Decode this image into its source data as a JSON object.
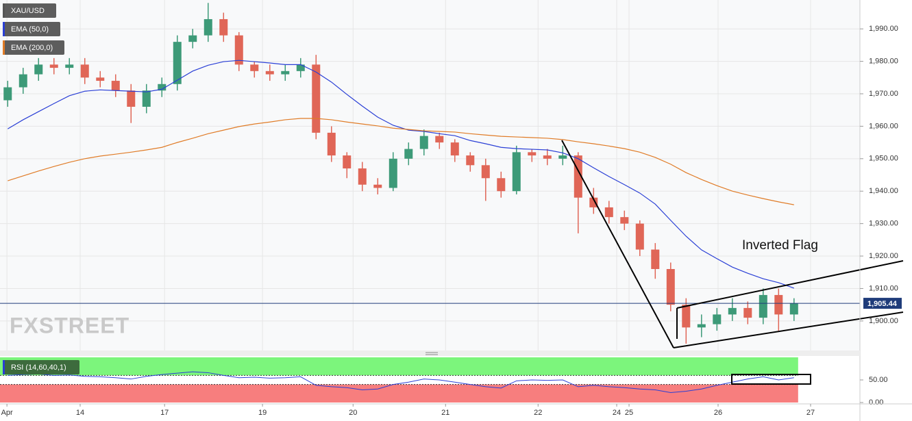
{
  "chart_data": [
    {
      "type": "candlestick",
      "watermark": "FXSTREET",
      "annotation": "Inverted Flag",
      "x": [
        2,
        6,
        10,
        14,
        18,
        22,
        26,
        30,
        34,
        38,
        42,
        46,
        50,
        54,
        58,
        62,
        66,
        70,
        74,
        78,
        82,
        86,
        90,
        94,
        98,
        102,
        106,
        110,
        114,
        118,
        122,
        126,
        130,
        134,
        138,
        142,
        146,
        150,
        154,
        158,
        162,
        166,
        170,
        174,
        178,
        182,
        186,
        190,
        194,
        198,
        202,
        206
      ],
      "xlim": [
        0,
        223.1
      ],
      "ylim": [
        1890.9,
        1998.9
      ],
      "yticks": [
        {
          "value": 1900,
          "label": "1,900.00"
        },
        {
          "value": 1910,
          "label": "1,910.00"
        },
        {
          "value": 1920,
          "label": "1,920.00"
        },
        {
          "value": 1930,
          "label": "1,930.00"
        },
        {
          "value": 1940,
          "label": "1,940.00"
        },
        {
          "value": 1950,
          "label": "1,950.00"
        },
        {
          "value": 1960,
          "label": "1,960.00"
        },
        {
          "value": 1970,
          "label": "1,970.00"
        },
        {
          "value": 1980,
          "label": "1,980.00"
        },
        {
          "value": 1990,
          "label": "1,990.00"
        }
      ],
      "grid": true,
      "price_line": {
        "value": 1905.44,
        "label": "1,905.44",
        "color": "#1f3c7a"
      },
      "candles": {
        "name": "XAU/USD",
        "color": "#555555",
        "up_color": "#3d9a78",
        "down_color": "#e06657",
        "open": [
          1968,
          1972,
          1976,
          1979,
          1978,
          1979,
          1975,
          1974,
          1971,
          1966,
          1971,
          1973,
          1986,
          1988,
          1993,
          1988,
          1979,
          1977,
          1976,
          1977,
          1979,
          1958,
          1951,
          1947,
          1942,
          1941,
          1950,
          1953,
          1957,
          1955,
          1951,
          1948,
          1944,
          1940,
          1952,
          1951,
          1950,
          1951,
          1938,
          1935,
          1932,
          1930,
          1922,
          1916,
          1905,
          1898,
          1899,
          1902,
          1904,
          1901,
          1908,
          1902
        ],
        "high": [
          1974,
          1978,
          1981,
          1981,
          1981,
          1981,
          1977,
          1976,
          1973,
          1973,
          1975,
          1988,
          1990,
          1998,
          1995,
          1989,
          1980,
          1979,
          1979,
          1981,
          1982,
          1960,
          1952,
          1949,
          1944,
          1952,
          1955,
          1959,
          1958,
          1956,
          1952,
          1950,
          1946,
          1954,
          1953,
          1953,
          1954,
          1952,
          1941,
          1937,
          1934,
          1931,
          1924,
          1918,
          1907,
          1902,
          1904,
          1907,
          1906,
          1910,
          1910,
          1907
        ],
        "low": [
          1966,
          1970,
          1974,
          1976,
          1976,
          1973,
          1972,
          1969,
          1961,
          1964,
          1969,
          1971,
          1984,
          1986,
          1986,
          1977,
          1975,
          1974,
          1974,
          1975,
          1956,
          1949,
          1944,
          1940,
          1939,
          1940,
          1948,
          1951,
          1953,
          1949,
          1946,
          1937,
          1938,
          1939,
          1949,
          1948,
          1948,
          1927,
          1933,
          1930,
          1928,
          1920,
          1913,
          1903,
          1893,
          1895,
          1897,
          1900,
          1899,
          1899,
          1897,
          1900
        ],
        "close": [
          1972,
          1976,
          1979,
          1978,
          1979,
          1975,
          1974,
          1971,
          1966,
          1971,
          1973,
          1986,
          1988,
          1993,
          1988,
          1979,
          1977,
          1976,
          1977,
          1979,
          1958,
          1951,
          1947,
          1942,
          1941,
          1950,
          1953,
          1957,
          1955,
          1951,
          1948,
          1944,
          1940,
          1952,
          1951,
          1950,
          1951,
          1938,
          1935,
          1932,
          1930,
          1922,
          1916,
          1905,
          1898,
          1899,
          1902,
          1904,
          1901,
          1908,
          1902,
          1905.44
        ]
      },
      "series": [
        {
          "name": "EMA (50,0)",
          "color": "#2a3fd6",
          "values": [
            1959.2,
            1962,
            1964.5,
            1967,
            1969.4,
            1970.8,
            1971.2,
            1971,
            1970.8,
            1970.6,
            1971.4,
            1974.2,
            1977,
            1978.8,
            1979.9,
            1980.3,
            1979.9,
            1979.5,
            1979,
            1979,
            1976.7,
            1973.6,
            1969.8,
            1966.2,
            1962.8,
            1960.3,
            1958.8,
            1958.4,
            1957.7,
            1957.1,
            1955.6,
            1954.6,
            1953.5,
            1953.1,
            1952.9,
            1952.7,
            1951.8,
            1950,
            1947.2,
            1944.5,
            1942,
            1939.4,
            1936,
            1931,
            1926.1,
            1921.9,
            1919.2,
            1916.6,
            1914.7,
            1913,
            1911.8,
            1910.1
          ]
        },
        {
          "name": "EMA (200,0)",
          "color": "#e07b26",
          "values": [
            1943.2,
            1944.7,
            1946.2,
            1947.6,
            1948.9,
            1950,
            1950.8,
            1951.4,
            1952,
            1952.7,
            1953.5,
            1955,
            1956.3,
            1957.7,
            1958.8,
            1959.9,
            1960.7,
            1961.3,
            1962,
            1962.4,
            1962.4,
            1962,
            1961.3,
            1960.7,
            1960.1,
            1959.4,
            1959,
            1958.6,
            1958.4,
            1958.2,
            1957.7,
            1957.3,
            1956.9,
            1956.7,
            1956.5,
            1956.3,
            1955.9,
            1955.2,
            1954.6,
            1953.9,
            1953.1,
            1952,
            1950.4,
            1948.3,
            1945.7,
            1943.6,
            1941.7,
            1940,
            1938.8,
            1937.7,
            1936.7,
            1935.8
          ]
        }
      ]
    },
    {
      "type": "line",
      "x": [
        2,
        6,
        10,
        14,
        18,
        22,
        26,
        30,
        34,
        38,
        42,
        46,
        50,
        54,
        58,
        62,
        66,
        70,
        74,
        78,
        82,
        86,
        90,
        94,
        98,
        102,
        106,
        110,
        114,
        118,
        122,
        126,
        130,
        134,
        138,
        142,
        146,
        150,
        154,
        158,
        162,
        166,
        170,
        174,
        178,
        182,
        186,
        190,
        194,
        198,
        202,
        206
      ],
      "xlim": [
        0,
        223.1
      ],
      "xticks": [
        {
          "value": 1.8,
          "label": "Apr"
        },
        {
          "value": 20.8,
          "label": "14"
        },
        {
          "value": 42.7,
          "label": "17"
        },
        {
          "value": 68.1,
          "label": "19"
        },
        {
          "value": 91.6,
          "label": "20"
        },
        {
          "value": 115.6,
          "label": "21"
        },
        {
          "value": 139.6,
          "label": "22"
        },
        {
          "value": 160,
          "label": "24"
        },
        {
          "value": 163.2,
          "label": "25"
        },
        {
          "value": 186.3,
          "label": "26"
        },
        {
          "value": 210.3,
          "label": "27"
        }
      ],
      "ylim": [
        0,
        100
      ],
      "yticks": [
        {
          "value": 0,
          "label": "0.00"
        },
        {
          "value": 50,
          "label": "50.00"
        }
      ],
      "bands": [
        40,
        60
      ],
      "series": [
        {
          "name": "RSI (14,60,40,1)",
          "color": "#2a3fd6",
          "values": [
            60,
            62,
            63,
            60,
            61,
            58,
            57,
            55,
            52,
            58,
            62,
            65,
            68,
            66,
            60,
            55,
            56,
            54,
            55,
            57,
            38,
            35,
            33,
            28,
            30,
            40,
            45,
            52,
            50,
            45,
            40,
            35,
            32,
            48,
            50,
            49,
            50,
            35,
            38,
            35,
            33,
            30,
            28,
            22,
            25,
            30,
            38,
            45,
            52,
            57,
            50,
            55
          ]
        }
      ]
    }
  ]
}
